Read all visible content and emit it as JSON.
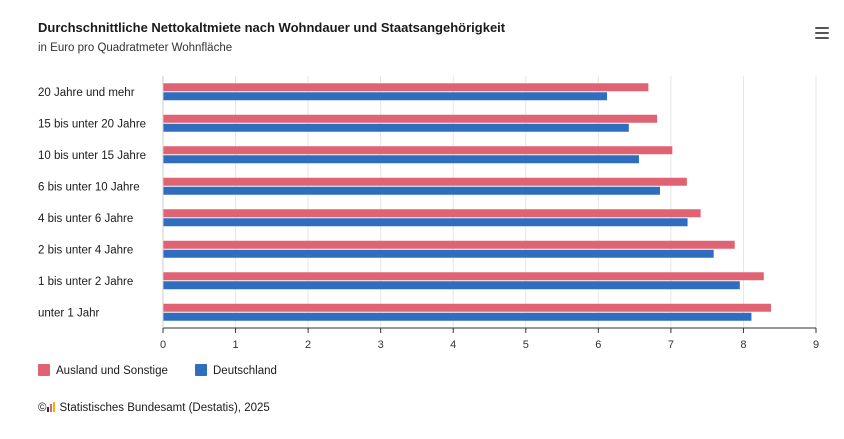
{
  "header": {
    "title": "Durchschnittliche Nettokaltmiete nach Wohndauer und Staatsangehörigkeit",
    "subtitle": "in Euro pro Quadratmeter Wohnfläche",
    "menu_icon": "hamburger-icon"
  },
  "chart_data": {
    "type": "bar",
    "orientation": "horizontal",
    "categories": [
      "20 Jahre und mehr",
      "15 bis unter 20 Jahre",
      "10 bis unter 15 Jahre",
      "6 bis unter 10 Jahre",
      "4 bis unter 6 Jahre",
      "2 bis unter 4 Jahre",
      "1 bis unter 2 Jahre",
      "unter 1 Jahr"
    ],
    "series": [
      {
        "name": "Ausland und Sonstige",
        "color": "#e06374",
        "values": [
          6.69,
          6.81,
          7.02,
          7.22,
          7.41,
          7.88,
          8.28,
          8.38
        ]
      },
      {
        "name": "Deutschland",
        "color": "#2f6ebf",
        "values": [
          6.12,
          6.42,
          6.56,
          6.85,
          7.23,
          7.59,
          7.95,
          8.11
        ]
      }
    ],
    "xlim": [
      0,
      9
    ],
    "xticks": [
      "0",
      "1",
      "2",
      "3",
      "4",
      "5",
      "6",
      "7",
      "8",
      "9"
    ],
    "grid": "vertical",
    "legend_position": "bottom-left"
  },
  "credit": {
    "copyright": "©",
    "text": "Statistisches Bundesamt (Destatis), 2025"
  }
}
